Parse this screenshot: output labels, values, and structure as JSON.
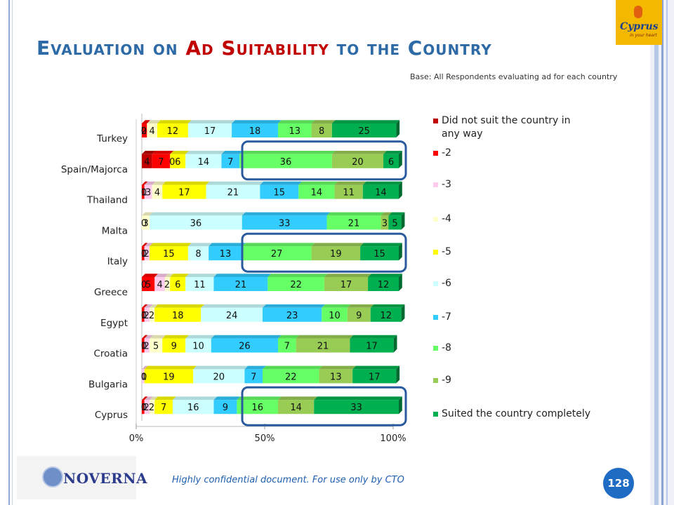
{
  "slide": {
    "title_pre": "Evaluation on ",
    "title_hl": "Ad Suitability",
    "title_post": " to the Country",
    "base_note": "Base: All Respondents evaluating ad for each country",
    "footer": "Highly confidential document. For use only by CTO",
    "page_number": "128",
    "logo_cyprus": "Cyprus",
    "logo_cyprus_sub": "in your heart",
    "logo_noverna": "NOVERNA"
  },
  "chart_data": {
    "type": "bar",
    "orientation": "horizontal",
    "stacked": "percent",
    "categories": [
      "Turkey",
      "Spain/Majorca",
      "Thailand",
      "Malta",
      "Italy",
      "Greece",
      "Egypt",
      "Croatia",
      "Bulgaria",
      "Cyprus"
    ],
    "x_tick_labels": [
      "0%",
      "50%",
      "100%"
    ],
    "legend_position": "right",
    "series": [
      {
        "name": "Did not suit the country in any way",
        "color": "#c00000",
        "values": [
          0,
          4,
          0,
          0,
          0,
          0,
          0,
          0,
          0,
          0
        ]
      },
      {
        "name": "-2",
        "color": "#ff0000",
        "values": [
          2,
          7,
          1,
          0,
          1,
          5,
          1,
          1,
          0,
          1
        ]
      },
      {
        "name": "-3",
        "color": "#ffccee",
        "values": [
          0,
          0,
          3,
          0,
          2,
          4,
          2,
          2,
          1,
          2
        ]
      },
      {
        "name": "-4",
        "color": "#ffffcc",
        "values": [
          4,
          0,
          4,
          3,
          0,
          2,
          2,
          5,
          0,
          2
        ]
      },
      {
        "name": "-5",
        "color": "#ffff00",
        "values": [
          12,
          6,
          17,
          0,
          15,
          6,
          18,
          9,
          19,
          7
        ]
      },
      {
        "name": "-6",
        "color": "#ccffff",
        "values": [
          17,
          14,
          21,
          36,
          8,
          11,
          24,
          10,
          20,
          16
        ]
      },
      {
        "name": "-7",
        "color": "#33ccff",
        "values": [
          18,
          7,
          15,
          33,
          13,
          21,
          23,
          26,
          7,
          9
        ]
      },
      {
        "name": "-8",
        "color": "#66ff66",
        "values": [
          13,
          36,
          14,
          21,
          27,
          22,
          10,
          7,
          22,
          16
        ]
      },
      {
        "name": "-9",
        "color": "#99cc55",
        "values": [
          8,
          20,
          11,
          3,
          19,
          17,
          9,
          21,
          13,
          14
        ]
      },
      {
        "name": "Suited  the country completely",
        "color": "#00b050",
        "values": [
          25,
          6,
          14,
          5,
          15,
          12,
          12,
          17,
          17,
          33
        ]
      }
    ],
    "data_labels": [
      [
        "0",
        "2",
        "",
        "4",
        "12",
        "17",
        "18",
        "13",
        "8",
        "25"
      ],
      [
        "4",
        "7",
        "0",
        "",
        "6",
        "14",
        "7",
        "36",
        "20",
        "6"
      ],
      [
        "0",
        "1",
        "3",
        "4",
        "17",
        "21",
        "15",
        "14",
        "11",
        "14"
      ],
      [
        "0",
        "",
        "",
        "3",
        "",
        "36",
        "33",
        "21",
        "3",
        "5"
      ],
      [
        "0",
        "1",
        "2",
        "",
        "15",
        "8",
        "13",
        "27",
        "19",
        "15"
      ],
      [
        "0",
        "5",
        "4",
        "2",
        "6",
        "11",
        "21",
        "22",
        "17",
        "12"
      ],
      [
        "0",
        "1",
        "2",
        "2",
        "18",
        "24",
        "23",
        "10",
        "9",
        "12"
      ],
      [
        "0",
        "1",
        "2",
        "5",
        "9",
        "10",
        "26",
        "7",
        "21",
        "17"
      ],
      [
        "0",
        "0",
        "1",
        "",
        "19",
        "20",
        "7",
        "22",
        "13",
        "17"
      ],
      [
        "0",
        "1",
        "2",
        "2",
        "7",
        "16",
        "9",
        "16",
        "14",
        "33"
      ]
    ],
    "highlighted_categories": [
      "Spain/Majorca",
      "Italy",
      "Cyprus"
    ],
    "highlight_color": "#2a5b9e"
  }
}
